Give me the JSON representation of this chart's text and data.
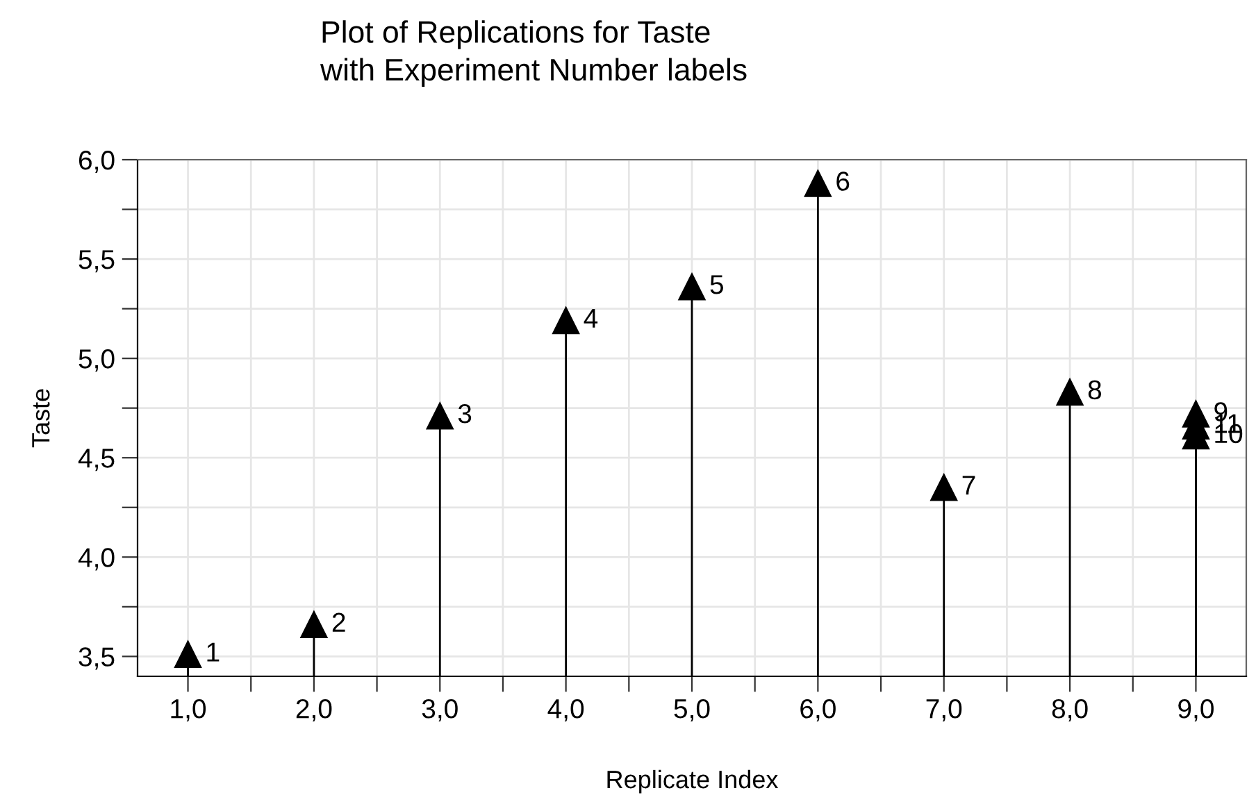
{
  "chart_data": {
    "type": "lollipop",
    "title": "Plot of Replications for Taste\nwith Experiment Number labels",
    "xlabel": "Replicate Index",
    "ylabel": "Taste",
    "series": [
      {
        "color": "#000000",
        "x": [
          1,
          2,
          3,
          4,
          5,
          6,
          7,
          8,
          9,
          9,
          9
        ],
        "values": [
          3.51,
          3.66,
          4.71,
          5.19,
          5.36,
          5.88,
          4.35,
          4.83,
          4.72,
          4.61,
          4.66
        ]
      }
    ],
    "annotations": [
      {
        "text": "1",
        "x": 1,
        "y": 3.51
      },
      {
        "text": "2",
        "x": 2,
        "y": 3.66
      },
      {
        "text": "3",
        "x": 3,
        "y": 4.71
      },
      {
        "text": "4",
        "x": 4,
        "y": 5.19
      },
      {
        "text": "5",
        "x": 5,
        "y": 5.36
      },
      {
        "text": "6",
        "x": 6,
        "y": 5.88
      },
      {
        "text": "7",
        "x": 7,
        "y": 4.35
      },
      {
        "text": "8",
        "x": 8,
        "y": 4.83
      },
      {
        "text": "9",
        "x": 9,
        "y": 4.72
      },
      {
        "text": "10",
        "x": 9,
        "y": 4.61
      },
      {
        "text": "11",
        "x": 9,
        "y": 4.66
      }
    ],
    "xlim": [
      0.6,
      9.4
    ],
    "ylim": [
      3.4,
      6.0
    ],
    "xticks": [
      {
        "value": 1,
        "label": "1,0"
      },
      {
        "value": 1.5,
        "label": null
      },
      {
        "value": 2,
        "label": "2,0"
      },
      {
        "value": 2.5,
        "label": null
      },
      {
        "value": 3,
        "label": "3,0"
      },
      {
        "value": 3.5,
        "label": null
      },
      {
        "value": 4,
        "label": "4,0"
      },
      {
        "value": 4.5,
        "label": null
      },
      {
        "value": 5,
        "label": "5,0"
      },
      {
        "value": 5.5,
        "label": null
      },
      {
        "value": 6,
        "label": "6,0"
      },
      {
        "value": 6.5,
        "label": null
      },
      {
        "value": 7,
        "label": "7,0"
      },
      {
        "value": 7.5,
        "label": null
      },
      {
        "value": 8,
        "label": "8,0"
      },
      {
        "value": 8.5,
        "label": null
      },
      {
        "value": 9,
        "label": "9,0"
      }
    ],
    "yticks": [
      {
        "value": 3.5,
        "label": "3,5"
      },
      {
        "value": 3.75,
        "label": null
      },
      {
        "value": 4,
        "label": "4,0"
      },
      {
        "value": 4.25,
        "label": null
      },
      {
        "value": 4.5,
        "label": "4,5"
      },
      {
        "value": 4.75,
        "label": null
      },
      {
        "value": 5,
        "label": "5,0"
      },
      {
        "value": 5.25,
        "label": null
      },
      {
        "value": 5.5,
        "label": "5,5"
      },
      {
        "value": 5.75,
        "label": null
      },
      {
        "value": 6,
        "label": "6,0"
      }
    ],
    "grid": true,
    "marker": "triangle",
    "line_style": "solid"
  }
}
